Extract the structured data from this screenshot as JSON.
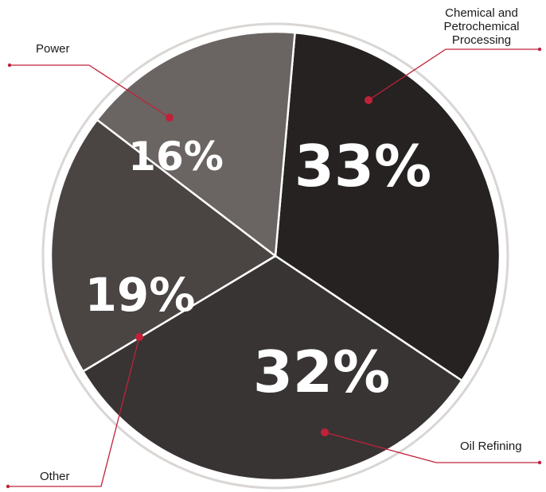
{
  "chart_data": {
    "type": "pie",
    "slices": [
      {
        "label": "Chemical and Petrochemical Processing",
        "lines": [
          "Chemical and",
          "Petrochemical",
          "Processing"
        ],
        "value": 33,
        "display": "33%",
        "color": "#252221"
      },
      {
        "label": "Oil Refining",
        "lines": [
          "Oil Refining"
        ],
        "value": 32,
        "display": "32%",
        "color": "#383433"
      },
      {
        "label": "Other",
        "lines": [
          "Other"
        ],
        "value": 19,
        "display": "19%",
        "color": "#4a4443"
      },
      {
        "label": "Power",
        "lines": [
          "Power"
        ],
        "value": 16,
        "display": "16%",
        "color": "#6a6462"
      }
    ],
    "accent_color": "#c0213a"
  }
}
